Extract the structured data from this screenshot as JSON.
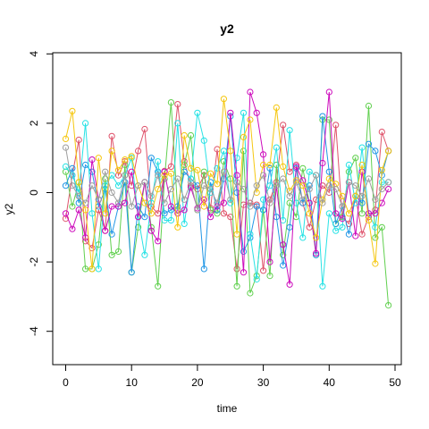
{
  "chart_data": {
    "type": "line",
    "title": "y2",
    "xlabel": "time",
    "ylabel": "y2",
    "xlim": [
      0,
      49
    ],
    "ylim": [
      -4,
      4
    ],
    "xticks": [
      0,
      10,
      20,
      30,
      40,
      50
    ],
    "yticks": [
      -4,
      -2,
      0,
      2,
      4
    ],
    "grid": false,
    "legend": "none",
    "point_marker": "open-circle",
    "series": [
      {
        "color": "#DF536B",
        "values": [
          -0.75,
          0.5,
          1.52,
          -1.4,
          -1.6,
          -0.5,
          -1.1,
          1.63,
          0.5,
          0.9,
          0.2,
          1.2,
          1.83,
          -0.4,
          -0.6,
          0.62,
          0.75,
          2.55,
          0.9,
          0.2,
          0.1,
          0.5,
          -0.45,
          1.25,
          -0.6,
          -0.7,
          -2.2,
          -0.35,
          -0.3,
          -0.35,
          -2.25,
          -0.2,
          0.3,
          1.95,
          0.6,
          0.8,
          -0.3,
          -1.0,
          -0.2,
          0.2,
          0.0,
          1.95,
          -0.7,
          -0.9,
          -0.1,
          -1.2,
          -0.7,
          -0.5,
          1.75,
          1.2
        ]
      },
      {
        "color": "#61D04F",
        "values": [
          0.6,
          -0.4,
          0.3,
          -2.2,
          -2.2,
          -1.5,
          0.4,
          -1.8,
          -1.7,
          0.8,
          -2.3,
          -1.0,
          0.3,
          -1.0,
          -2.7,
          0.4,
          2.6,
          -0.5,
          0.8,
          1.65,
          -0.5,
          0.6,
          -0.5,
          -0.6,
          0.9,
          0.4,
          -2.7,
          1.2,
          -2.9,
          -2.4,
          -0.5,
          -2.4,
          0.8,
          -1.8,
          -0.3,
          -0.7,
          0.7,
          -0.3,
          -1.8,
          2.1,
          2.1,
          -0.9,
          -0.7,
          0.6,
          1.0,
          -0.6,
          2.5,
          -1.3,
          -1.0,
          -3.25
        ]
      },
      {
        "color": "#2297E6",
        "values": [
          0.2,
          0.7,
          -0.3,
          0.8,
          0.6,
          -0.4,
          0.1,
          -1.2,
          -0.4,
          0.3,
          -2.3,
          -0.4,
          -0.7,
          1.0,
          0.6,
          -0.6,
          -0.5,
          -0.4,
          0.6,
          0.4,
          0.2,
          -2.2,
          0.3,
          -0.5,
          0.4,
          2.2,
          0.0,
          -1.7,
          -1.3,
          -0.4,
          -0.5,
          0.7,
          -0.7,
          -2.1,
          -1.0,
          0.7,
          -0.3,
          0.2,
          -1.8,
          2.2,
          0.6,
          -0.9,
          -0.4,
          -1.2,
          -0.1,
          -0.3,
          1.4,
          1.2,
          0.5,
          1.2
        ]
      },
      {
        "color": "#28E2E5",
        "values": [
          0.75,
          0.5,
          0.0,
          2.0,
          -0.6,
          -2.2,
          0.2,
          0.5,
          0.2,
          0.5,
          1.0,
          -0.7,
          -1.8,
          -0.3,
          0.9,
          -0.8,
          -0.8,
          2.0,
          -0.9,
          0.4,
          2.3,
          1.5,
          0.0,
          0.7,
          1.2,
          -0.3,
          1.0,
          2.3,
          -1.2,
          -2.5,
          -0.2,
          0.2,
          1.3,
          -0.8,
          1.8,
          -0.3,
          -1.3,
          0.6,
          0.5,
          -2.7,
          -0.6,
          -1.1,
          -1.0,
          0.8,
          -0.3,
          1.3,
          -0.6,
          -1.0,
          0.3,
          0.3
        ]
      },
      {
        "color": "#CD0BBC",
        "values": [
          -0.6,
          -1.05,
          -0.5,
          -1.3,
          0.95,
          -0.2,
          -1.1,
          -0.4,
          -0.4,
          -0.3,
          0.6,
          -0.7,
          0.3,
          -1.1,
          -1.4,
          0.6,
          -0.4,
          -0.6,
          -0.5,
          0.15,
          -0.45,
          -0.2,
          -0.7,
          -0.4,
          -0.3,
          2.3,
          0.5,
          -2.3,
          2.9,
          2.3,
          1.1,
          -2.0,
          0.2,
          -1.5,
          -2.65,
          0.75,
          0.35,
          -0.3,
          -1.75,
          0.85,
          2.9,
          -0.6,
          -0.75,
          0.3,
          -1.25,
          0.6,
          -0.6,
          -0.6,
          -0.3,
          0.1
        ]
      },
      {
        "color": "#F5C710",
        "values": [
          1.55,
          2.35,
          0.3,
          -0.5,
          -2.2,
          1.0,
          -0.6,
          1.2,
          0.65,
          0.95,
          1.05,
          0.2,
          -0.3,
          -0.6,
          0.1,
          0.5,
          0.55,
          -1.0,
          1.65,
          0.7,
          0.65,
          -0.4,
          0.55,
          0.25,
          2.7,
          1.2,
          -1.2,
          1.6,
          2.1,
          0.0,
          0.8,
          0.8,
          2.45,
          0.75,
          0.05,
          0.35,
          0.2,
          -0.6,
          -1.3,
          -0.2,
          0.4,
          0.25,
          -0.1,
          -0.6,
          -0.1,
          0.8,
          -0.8,
          -2.05,
          0.65,
          1.2
        ]
      },
      {
        "color": "#9E9E9E",
        "values": [
          1.3,
          0.2,
          -0.1,
          -0.3,
          0.2,
          -0.2,
          0.6,
          0.0,
          -0.3,
          0.5,
          -0.4,
          0.2,
          0.3,
          -0.1,
          0.5,
          -0.3,
          0.1,
          0.4,
          -0.2,
          0.3,
          -0.5,
          0.2,
          0.1,
          -0.3,
          0.6,
          -0.2,
          0.3,
          0.1,
          -0.4,
          0.2,
          0.5,
          -0.3,
          0.2,
          0.4,
          -0.1,
          0.3,
          -0.2,
          0.1,
          0.5,
          -0.3,
          0.2,
          0.1,
          -0.4,
          0.3,
          0.2,
          -0.1,
          0.4,
          -0.2,
          0.1,
          0.3
        ]
      }
    ]
  }
}
